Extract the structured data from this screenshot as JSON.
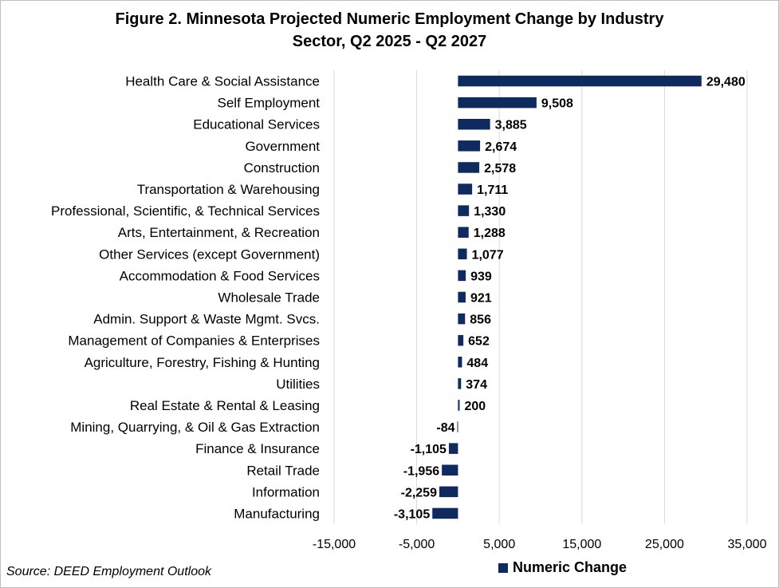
{
  "chart_data": {
    "type": "bar",
    "orientation": "horizontal",
    "title_lines": [
      "Figure 2. Minnesota Projected Numeric Employment Change by Industry",
      "Sector, Q2 2025 - Q2 2027"
    ],
    "categories": [
      "Health Care & Social Assistance",
      "Self Employment",
      "Educational Services",
      "Government",
      "Construction",
      "Transportation & Warehousing",
      "Professional, Scientific, & Technical Services",
      "Arts, Entertainment, & Recreation",
      "Other Services (except Government)",
      "Accommodation & Food Services",
      "Wholesale Trade",
      "Admin. Support & Waste Mgmt. Svcs.",
      "Management of Companies & Enterprises",
      "Agriculture, Forestry, Fishing & Hunting",
      "Utilities",
      "Real Estate & Rental & Leasing",
      "Mining, Quarrying, & Oil & Gas Extraction",
      "Finance & Insurance",
      "Retail Trade",
      "Information",
      "Manufacturing"
    ],
    "series": [
      {
        "name": "Numeric Change",
        "values": [
          29480,
          9508,
          3885,
          2674,
          2578,
          1711,
          1330,
          1288,
          1077,
          939,
          921,
          856,
          652,
          484,
          374,
          200,
          -84,
          -1105,
          -1956,
          -2259,
          -3105
        ],
        "labels": [
          "29,480",
          "9,508",
          "3,885",
          "2,674",
          "2,578",
          "1,711",
          "1,330",
          "1,288",
          "1,077",
          "939",
          "921",
          "856",
          "652",
          "484",
          "374",
          "200",
          "-84",
          "-1,105",
          "-1,956",
          "-2,259",
          "-3,105"
        ]
      }
    ],
    "xlim": [
      -15000,
      35000
    ],
    "xticks": [
      -15000,
      -5000,
      5000,
      15000,
      25000,
      35000
    ],
    "xtick_labels": [
      "-15,000",
      "-5,000",
      "5,000",
      "15,000",
      "25,000",
      "35,000"
    ],
    "grid": true,
    "legend_position": "bottom",
    "source": "Source: DEED Employment Outlook",
    "colors": {
      "bar": "#0f2a5e",
      "grid": "#d9d9d9",
      "text": "#000000"
    }
  }
}
